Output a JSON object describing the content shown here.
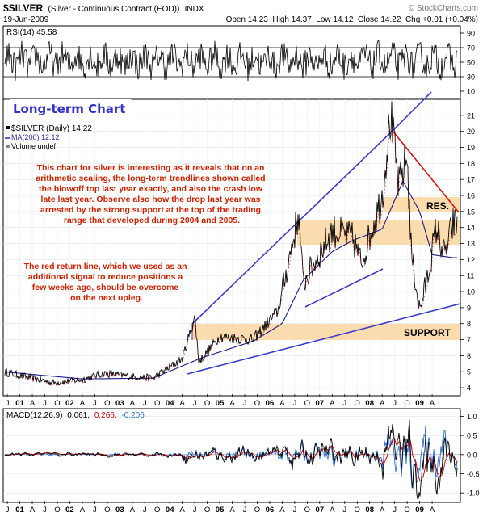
{
  "header": {
    "symbol": "$SILVER",
    "description": "(Silver - Continuous Contract (EOD))",
    "exchange": "INDX",
    "watermark": "© StockCharts.com",
    "date": "19-Jun-2009",
    "quote": "Open 14.23  High 14.37  Low 14.12  Close 14.22  Chg +0.01 (+0.04%)",
    "quote_parts": [
      {
        "label": "Open",
        "value": "14.23"
      },
      {
        "label": "High",
        "value": "14.37"
      },
      {
        "label": "Low",
        "value": "14.12"
      },
      {
        "label": "Close",
        "value": "14.22"
      },
      {
        "label": "Chg",
        "value": "+0.01 (+0.04%)"
      }
    ]
  },
  "rsi_panel": {
    "label": "RSI(14) 45.58",
    "ticks": [
      "90",
      "70",
      "50",
      "30",
      "10"
    ],
    "range": [
      0,
      100
    ],
    "bands": [
      30,
      70
    ]
  },
  "main_panel": {
    "title_box": "Long-term Chart",
    "legend": [
      {
        "text": "$SILVER (Daily) 14.22",
        "color": "#000000"
      },
      {
        "text": "MA(200) 12.12",
        "color": "#2a2aa5"
      },
      {
        "text": "Volume undef",
        "color": "#000000"
      }
    ],
    "ticks": [
      "21",
      "20",
      "19",
      "18",
      "17",
      "16",
      "15",
      "14",
      "13",
      "12",
      "11",
      "10",
      "9",
      "8",
      "7",
      "6",
      "5",
      "4"
    ],
    "annotation_1": "This chart for silver is interesting as it reveals that on an arithmetic scaling, the long-term trendlines shown called the blowoff top last year exactly, and also the crash low late last year. Observe also how the drop last year was arrested by the strong support at the top of the trading range that developed during 2004 and 2005.",
    "annotation_1_lines": [
      "This chart for silver is interesting as it reveals that on an",
      "arithmetic scaling, the long-term trendlines shown called",
      "the blowoff top last year exactly, and also the crash low",
      "late last year. Observe also how the drop last year was",
      "arrested by the strong support at the top of the trading",
      "range that developed during 2004 and 2005."
    ],
    "annotation_2_lines": [
      "The red return line, which we used as an",
      "additional signal to reduce positions a",
      "few weeks ago, should be overcome",
      "on the next upleg."
    ],
    "res_label": "RES.",
    "support_label": "SUPPORT",
    "colors": {
      "price": "#000000",
      "ma": "#1a1a8c",
      "trend": "#3a3acc",
      "return_line": "#dd1111",
      "band": "#fbdcae",
      "text": "#cc2200",
      "title": "#3333cc"
    }
  },
  "x_axis": {
    "labels": [
      "J",
      "01",
      "A",
      "J",
      "O",
      "02",
      "A",
      "J",
      "O",
      "03",
      "A",
      "J",
      "O",
      "04",
      "A",
      "J",
      "O",
      "05",
      "A",
      "J",
      "O",
      "06",
      "A",
      "J",
      "O",
      "07",
      "A",
      "J",
      "O",
      "08",
      "A",
      "J",
      "O",
      "09",
      "A"
    ],
    "bold": [
      "01",
      "02",
      "03",
      "04",
      "05",
      "06",
      "07",
      "08",
      "09"
    ]
  },
  "macd_panel": {
    "label_prefix": "MACD(12,26,9)",
    "macd": "0.061,",
    "signal": "0.266,",
    "hist": "-0.206",
    "ticks": [
      "1.0",
      "0.5",
      "0.0",
      "-0.5",
      "-1.0"
    ],
    "range": [
      -1.25,
      1.2
    ],
    "colors": {
      "macd": "#000000",
      "signal": "#cc0000",
      "hist": "#2a6fd0"
    }
  },
  "chart_data": {
    "type": "line",
    "title": "$SILVER (Silver - Continuous Contract (EOD))",
    "x_range": [
      "2000-06",
      "2009-06"
    ],
    "y_range": [
      4,
      21.5
    ],
    "series": [
      {
        "name": "$SILVER (Daily)",
        "x": [
          "2000-06",
          "2001-01",
          "2001-06",
          "2002-01",
          "2002-06",
          "2003-01",
          "2003-06",
          "2004-01",
          "2004-04",
          "2004-05",
          "2004-10",
          "2005-06",
          "2005-12",
          "2006-05",
          "2006-06",
          "2007-01",
          "2007-06",
          "2007-08",
          "2008-01",
          "2008-03",
          "2008-05",
          "2008-07",
          "2008-08",
          "2008-10",
          "2008-12",
          "2009-02",
          "2009-04",
          "2009-06"
        ],
        "y": [
          5.0,
          4.6,
          4.3,
          4.5,
          4.9,
          4.7,
          4.6,
          5.8,
          8.4,
          5.6,
          7.2,
          7.0,
          8.8,
          14.9,
          10.5,
          13.8,
          13.3,
          11.8,
          16.0,
          21.0,
          16.5,
          18.5,
          12.5,
          8.8,
          11.0,
          14.0,
          12.2,
          14.22
        ]
      },
      {
        "name": "MA(200)",
        "x": [
          "2000-06",
          "2002-01",
          "2003-06",
          "2004-06",
          "2005-06",
          "2006-01",
          "2006-06",
          "2007-01",
          "2007-06",
          "2008-01",
          "2008-06",
          "2008-10",
          "2009-01",
          "2009-06"
        ],
        "y": [
          5.0,
          4.55,
          4.6,
          5.9,
          6.9,
          8.0,
          10.7,
          12.5,
          13.2,
          13.9,
          16.9,
          15.0,
          12.3,
          12.12
        ]
      }
    ],
    "annotations": [
      {
        "text": "RES.",
        "band": [
          14,
          17
        ]
      },
      {
        "text": "SUPPORT",
        "band": [
          7.5,
          8.5
        ]
      }
    ]
  }
}
